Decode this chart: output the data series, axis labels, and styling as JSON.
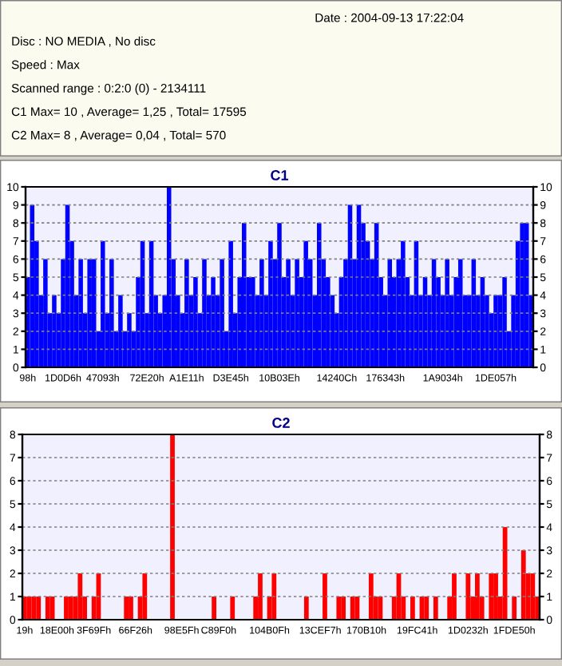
{
  "chart_data": [
    {
      "type": "other",
      "annotations": [
        "Date : 2004-09-13 17:22:04",
        "Disc : NO MEDIA , No disc",
        "Speed : Max",
        "Scanned range : 0:2:0 (0) - 2134111",
        "C1 Max= 10 , Average= 1,25 , Total= 17595",
        "C2 Max= 8 , Average= 0,04 , Total= 570"
      ]
    },
    {
      "type": "bar",
      "title": "C1",
      "color": "#0000ff",
      "grid": "y",
      "ylim": [
        0,
        10
      ],
      "yticks": [
        0,
        1,
        2,
        3,
        4,
        5,
        6,
        7,
        8,
        9,
        10
      ],
      "y2lim": [
        0,
        10
      ],
      "y2ticks": [
        0,
        1,
        2,
        3,
        4,
        5,
        6,
        7,
        8,
        9,
        10
      ],
      "categories": [
        "98h",
        null,
        null,
        null,
        null,
        null,
        null,
        null,
        "1D0D6h",
        null,
        null,
        null,
        null,
        null,
        null,
        null,
        null,
        "47093h",
        null,
        null,
        null,
        null,
        null,
        null,
        null,
        null,
        null,
        "72E20h",
        null,
        null,
        null,
        null,
        null,
        null,
        null,
        null,
        "A1E11h",
        null,
        null,
        null,
        null,
        null,
        null,
        null,
        null,
        null,
        "D3E45h",
        null,
        null,
        null,
        null,
        null,
        null,
        null,
        null,
        null,
        null,
        "10B03Eh",
        null,
        null,
        null,
        null,
        null,
        null,
        null,
        null,
        null,
        null,
        null,
        null,
        "14240Ch",
        null,
        null,
        null,
        null,
        null,
        null,
        null,
        null,
        null,
        null,
        "176343h",
        null,
        null,
        null,
        null,
        null,
        null,
        null,
        null,
        null,
        null,
        null,
        null,
        "1A9034h",
        null,
        null,
        null,
        null,
        null,
        null,
        null,
        null,
        null,
        null,
        null,
        "1DE057h",
        null,
        null,
        null,
        null,
        null,
        null,
        null,
        null
      ],
      "values": [
        5,
        9,
        7,
        4,
        6,
        3,
        4,
        3,
        6,
        9,
        7,
        4,
        6,
        3,
        6,
        6,
        2,
        7,
        3,
        6,
        2,
        4,
        2,
        3,
        2,
        5,
        7,
        3,
        7,
        4,
        3,
        4,
        10,
        6,
        4,
        3,
        6,
        4,
        5,
        3,
        6,
        4,
        5,
        4,
        6,
        2,
        7,
        3,
        5,
        8,
        5,
        5,
        4,
        6,
        4,
        7,
        6,
        8,
        5,
        6,
        4,
        6,
        5,
        7,
        6,
        4,
        8,
        6,
        5,
        4,
        3,
        5,
        6,
        9,
        6,
        9,
        8,
        7,
        6,
        8,
        5,
        4,
        6,
        5,
        6,
        7,
        5,
        4,
        7,
        4,
        5,
        4,
        6,
        5,
        4,
        6,
        4,
        5,
        6,
        4,
        4,
        6,
        4,
        5,
        4,
        3,
        4,
        4,
        5,
        2,
        4,
        7,
        8,
        8,
        4
      ]
    },
    {
      "type": "bar",
      "title": "C2",
      "color": "#ff0000",
      "grid": "y",
      "ylim": [
        0,
        8
      ],
      "yticks": [
        0,
        1,
        2,
        3,
        4,
        5,
        6,
        7,
        8
      ],
      "y2lim": [
        0,
        8
      ],
      "y2ticks": [
        0,
        1,
        2,
        3,
        4,
        5,
        6,
        7,
        8
      ],
      "categories": [
        "19h",
        null,
        null,
        null,
        null,
        null,
        null,
        "18E00h",
        null,
        null,
        null,
        null,
        null,
        null,
        null,
        "3F69Fh",
        null,
        null,
        null,
        null,
        null,
        null,
        null,
        null,
        "66F26h",
        null,
        null,
        null,
        null,
        null,
        null,
        null,
        null,
        null,
        "98E5Fh",
        null,
        null,
        null,
        null,
        null,
        null,
        null,
        "C89F0h",
        null,
        null,
        null,
        null,
        null,
        null,
        null,
        null,
        null,
        null,
        "104B0Fh",
        null,
        null,
        null,
        null,
        null,
        null,
        null,
        null,
        null,
        null,
        "13CEF7h",
        null,
        null,
        null,
        null,
        null,
        null,
        null,
        null,
        null,
        "170B10h",
        null,
        null,
        null,
        null,
        null,
        null,
        null,
        null,
        null,
        null,
        "19FC41h",
        null,
        null,
        null,
        null,
        null,
        null,
        null,
        null,
        null,
        null,
        "1D0232h",
        null,
        null,
        null,
        null,
        null,
        null,
        null,
        null,
        null,
        "1FDE50h",
        null,
        null,
        null,
        null,
        null
      ],
      "values": [
        1,
        1,
        1,
        1,
        0,
        1,
        1,
        0,
        0,
        1,
        1,
        1,
        2,
        1,
        0,
        1,
        2,
        0,
        0,
        0,
        0,
        0,
        1,
        1,
        0,
        1,
        2,
        0,
        0,
        0,
        0,
        0,
        8,
        0,
        0,
        0,
        0,
        0,
        0,
        0,
        0,
        1,
        0,
        0,
        0,
        1,
        0,
        0,
        0,
        0,
        1,
        2,
        0,
        1,
        2,
        0,
        0,
        0,
        0,
        0,
        0,
        1,
        0,
        0,
        0,
        2,
        0,
        0,
        1,
        1,
        0,
        1,
        1,
        0,
        0,
        2,
        1,
        1,
        0,
        0,
        1,
        2,
        1,
        0,
        1,
        0,
        1,
        1,
        0,
        1,
        0,
        0,
        1,
        2,
        0,
        0,
        2,
        1,
        2,
        1,
        0,
        2,
        2,
        1,
        4,
        0,
        1,
        0,
        3,
        2,
        2,
        1
      ]
    }
  ]
}
